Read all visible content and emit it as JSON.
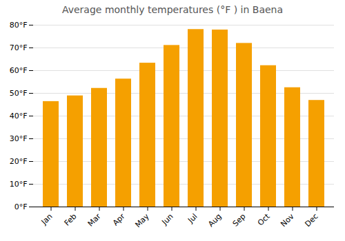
{
  "chart_data": {
    "type": "bar",
    "title": "Average monthly temperatures (°F ) in Baena",
    "categories": [
      "Jan",
      "Feb",
      "Mar",
      "Apr",
      "May",
      "Jun",
      "Jul",
      "Aug",
      "Sep",
      "Oct",
      "Nov",
      "Dec"
    ],
    "values": [
      46.4,
      48.9,
      52.2,
      56.3,
      63.3,
      71.1,
      78.1,
      77.9,
      72.0,
      62.2,
      52.5,
      46.9
    ],
    "color": "#F5A000",
    "ylim": [
      0,
      80
    ],
    "yticks": [
      {
        "value": 0,
        "label": "0°F"
      },
      {
        "value": 10,
        "label": "10°F"
      },
      {
        "value": 20,
        "label": "20°F"
      },
      {
        "value": 30,
        "label": "30°F"
      },
      {
        "value": 40,
        "label": "40°F"
      },
      {
        "value": 50,
        "label": "50°F"
      },
      {
        "value": 60,
        "label": "60°F"
      },
      {
        "value": 70,
        "label": "70°F"
      },
      {
        "value": 80,
        "label": "80°F"
      }
    ],
    "grid": true
  }
}
